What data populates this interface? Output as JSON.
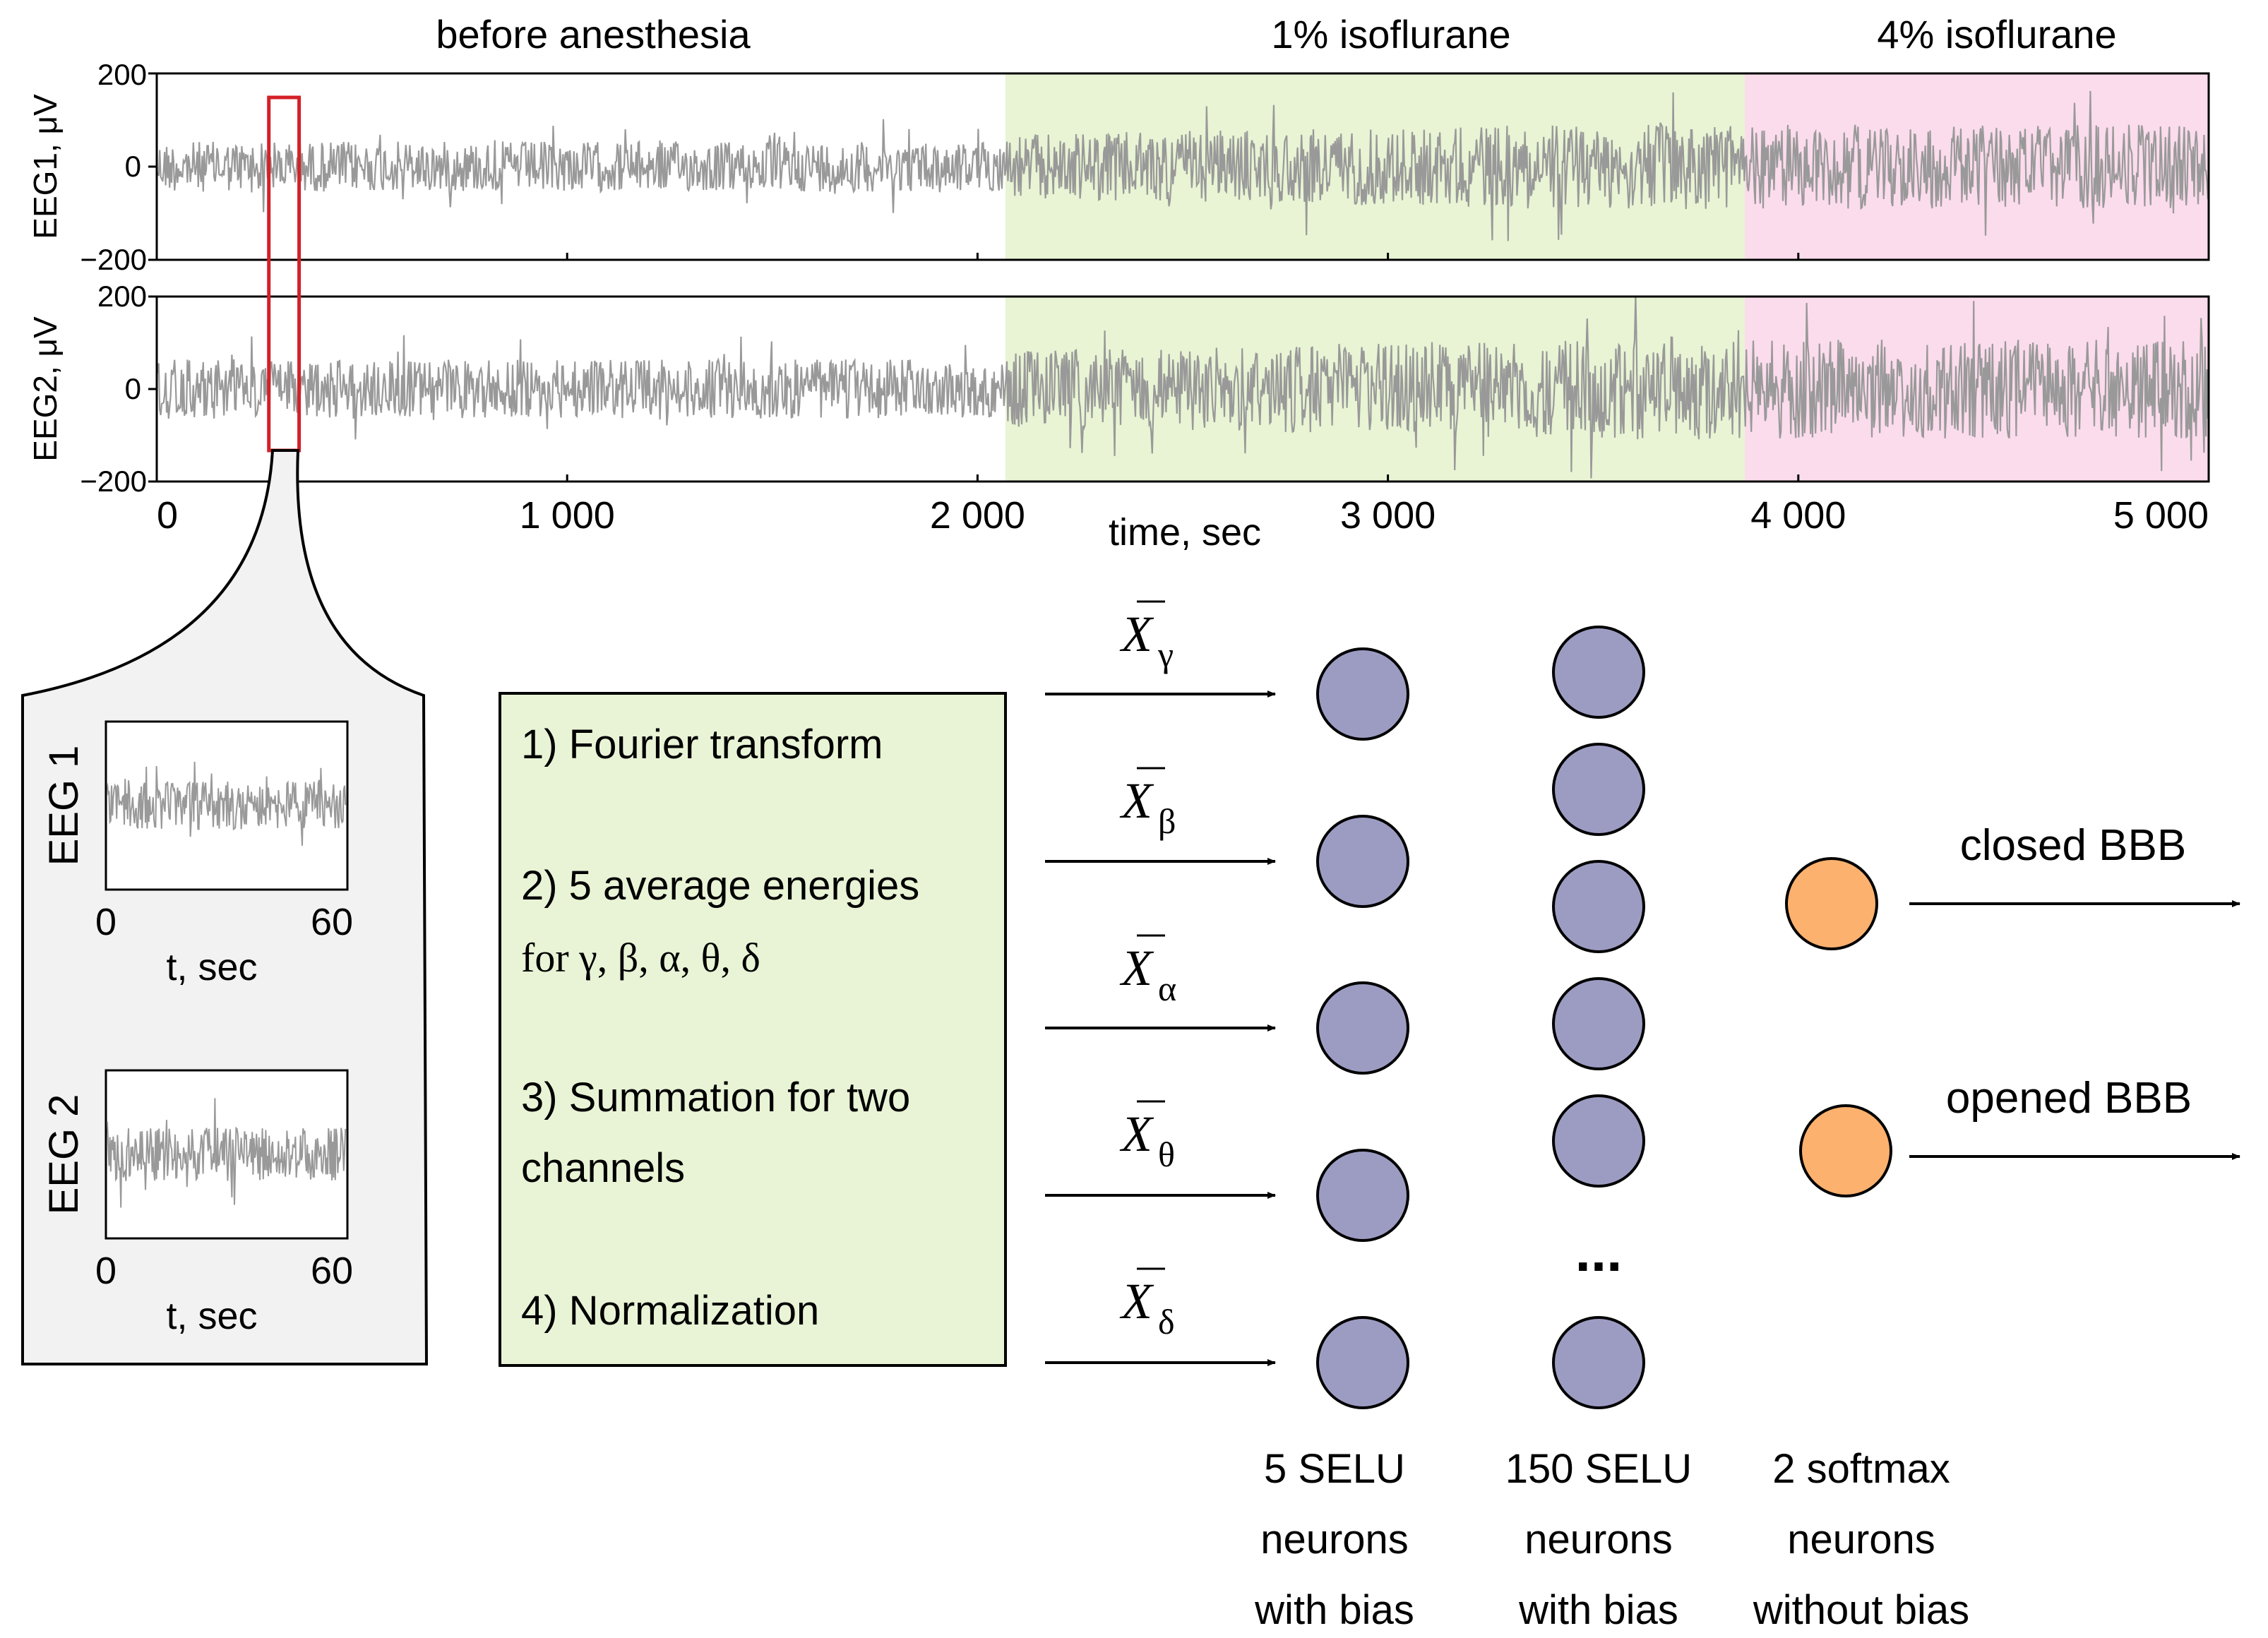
{
  "colors": {
    "trace": "#999999",
    "stage_before": "#ffffff",
    "stage_1pct": "#e8f4d4",
    "stage_4pct": "#fbdcec",
    "highlight": "#d42027",
    "hidden_neuron": "#9c9cc3",
    "output_neuron": "#fcb16e",
    "zoom_box": "#f2f2f2",
    "process_box": "#e9f4d6"
  },
  "stages": [
    {
      "label": "before anesthesia",
      "start": 0,
      "end": 2070
    },
    {
      "label": "1% isoflurane",
      "start": 2070,
      "end": 3870
    },
    {
      "label": "4% isoflurane",
      "start": 3870,
      "end": 5000
    }
  ],
  "chart_data": [
    {
      "type": "line",
      "name": "EEG1",
      "ylabel": "EEG1, μV",
      "yticks": [
        "200",
        "0",
        "−200"
      ],
      "ylim": [
        -200,
        200
      ],
      "xlim": [
        0,
        5000
      ],
      "highlight_window": [
        280,
        340
      ]
    },
    {
      "type": "line",
      "name": "EEG2",
      "ylabel": "EEG2, μV",
      "yticks": [
        "200",
        "0",
        "−200"
      ],
      "ylim": [
        -200,
        200
      ],
      "xlim": [
        0,
        5000
      ],
      "xlabel": "time, sec",
      "xticks": [
        {
          "value": 0,
          "label": "0"
        },
        {
          "value": 1000,
          "label": "1 000"
        },
        {
          "value": 2000,
          "label": "2 000"
        },
        {
          "value": 3000,
          "label": "3 000"
        },
        {
          "value": 4000,
          "label": "4 000"
        },
        {
          "value": 5000,
          "label": "5 000"
        }
      ]
    }
  ],
  "zoom": {
    "panels": [
      {
        "label": "EEG 1",
        "xmin": "0",
        "xmax": "60",
        "xlabel": "t, sec"
      },
      {
        "label": "EEG 2",
        "xmin": "0",
        "xmax": "60",
        "xlabel": "t, sec"
      }
    ]
  },
  "process": {
    "steps": [
      {
        "line1": "1) Fourier transform",
        "line2": ""
      },
      {
        "line1": "2) 5 average energies",
        "line2": "for γ, β, α, θ, δ"
      },
      {
        "line1": "3) Summation for two",
        "line2": "channels"
      },
      {
        "line1": "4) Normalization",
        "line2": ""
      }
    ]
  },
  "inputs": [
    {
      "symbol": "X",
      "sub": "γ"
    },
    {
      "symbol": "X",
      "sub": "β"
    },
    {
      "symbol": "X",
      "sub": "α"
    },
    {
      "symbol": "X",
      "sub": "θ"
    },
    {
      "symbol": "X",
      "sub": "δ"
    }
  ],
  "network": {
    "ellipsis": "...",
    "layers": [
      {
        "line1": "5 SELU",
        "line2": "neurons",
        "line3": "with bias"
      },
      {
        "line1": "150 SELU",
        "line2": "neurons",
        "line3": "with bias"
      },
      {
        "line1": "2 softmax",
        "line2": "neurons",
        "line3": "without bias"
      }
    ]
  },
  "outputs": [
    {
      "label": "closed BBB"
    },
    {
      "label": "opened BBB"
    }
  ]
}
